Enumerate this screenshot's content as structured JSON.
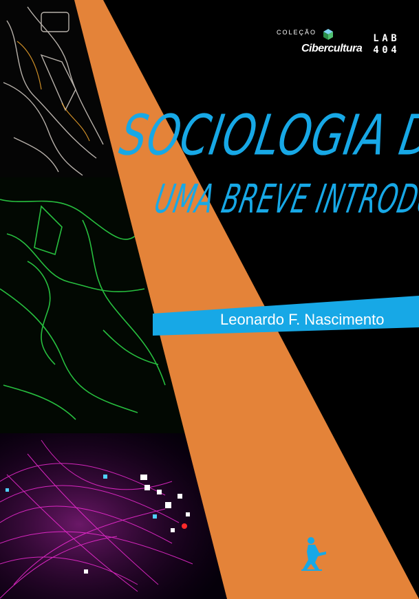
{
  "collection": {
    "label": "COLEÇÃO",
    "name": "Cibercultura"
  },
  "lab_logo": {
    "cells": [
      "L",
      "A",
      "B",
      "4",
      "0",
      "4"
    ]
  },
  "book": {
    "title": "SOCIOLOGIA DIGITAL:",
    "subtitle": "UMA BREVE INTRODUÇÃO",
    "author": "Leonardo F. Nascimento"
  },
  "colors": {
    "background": "#000000",
    "accent_orange": "#f08a3c",
    "accent_blue": "#17a8e6",
    "title_blue": "#17a8e6"
  },
  "icons": {
    "collection_mark": "cube-icon",
    "publisher_mark": "figure-icon"
  }
}
